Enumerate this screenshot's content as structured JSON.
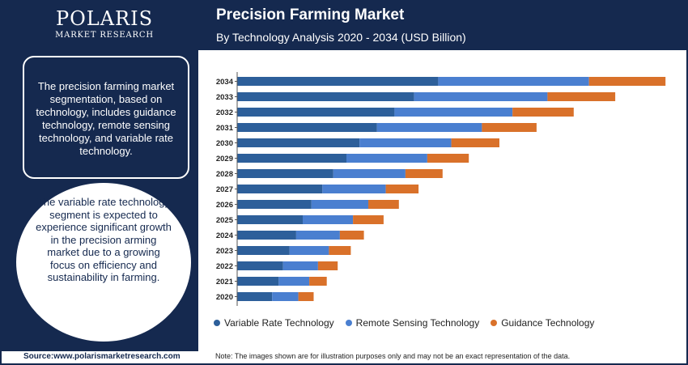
{
  "brand": {
    "name": "POLARIS",
    "sub": "MARKET RESEARCH"
  },
  "header": {
    "title": "Precision Farming Market",
    "subtitle": "By Technology Analysis 2020 - 2034 (USD Billion)"
  },
  "sidebar": {
    "info_text": "The precision farming market segmentation, based on technology, includes guidance technology, remote sensing technology, and variable rate technology.",
    "highlight_text": "The variable rate technology segment is expected to experience significant growth in the precision arming market due to a growing focus on efficiency and sustainability in farming."
  },
  "footer": {
    "source": "Source:www.polarismarketresearch.com",
    "note": "Note: The images shown are for illustration purposes only and may not be an exact representation of the data."
  },
  "colors": {
    "navy": "#15294f",
    "variable_rate": "#2d5f9a",
    "remote_sensing": "#4a7fd0",
    "guidance": "#d9712a"
  },
  "chart_data": {
    "type": "bar",
    "orientation": "horizontal",
    "stacked": true,
    "categories": [
      "2034",
      "2033",
      "2032",
      "2031",
      "2030",
      "2029",
      "2028",
      "2027",
      "2026",
      "2025",
      "2024",
      "2023",
      "2022",
      "2021",
      "2020"
    ],
    "series": [
      {
        "name": "Variable Rate Technology",
        "color": "#2d5f9a",
        "values": [
          9.2,
          8.1,
          7.2,
          6.4,
          5.6,
          5.0,
          4.4,
          3.9,
          3.4,
          3.0,
          2.7,
          2.4,
          2.1,
          1.9,
          1.6
        ]
      },
      {
        "name": "Remote Sensing Technology",
        "color": "#4a7fd0",
        "values": [
          6.9,
          6.1,
          5.4,
          4.8,
          4.2,
          3.7,
          3.3,
          2.9,
          2.6,
          2.3,
          2.0,
          1.8,
          1.6,
          1.4,
          1.2
        ]
      },
      {
        "name": "Guidance Technology",
        "color": "#d9712a",
        "values": [
          3.5,
          3.1,
          2.8,
          2.5,
          2.2,
          1.9,
          1.7,
          1.5,
          1.4,
          1.4,
          1.1,
          1.0,
          0.9,
          0.8,
          0.7
        ]
      }
    ],
    "xlim": [
      0,
      20
    ],
    "grid": false,
    "legend": "bottom"
  }
}
